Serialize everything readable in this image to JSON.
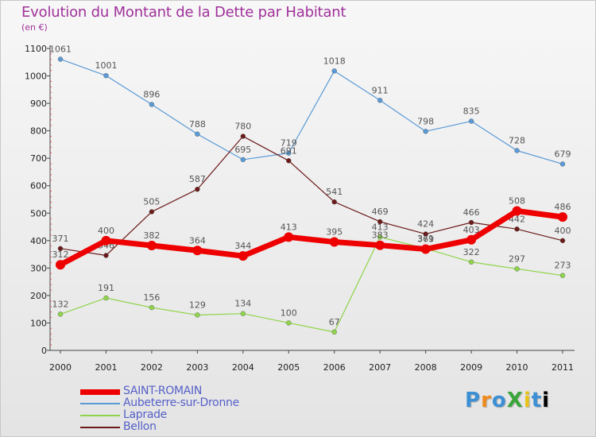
{
  "title": "Evolution du Montant de la Dette par Habitant",
  "subtitle": "(en €)",
  "brand": "ProXiti",
  "chart_data": {
    "type": "line",
    "x": [
      "2000",
      "2001",
      "2002",
      "2003",
      "2004",
      "2005",
      "2006",
      "2007",
      "2008",
      "2009",
      "2010",
      "2011"
    ],
    "yticks": [
      0,
      100,
      200,
      300,
      400,
      500,
      600,
      700,
      800,
      900,
      1000,
      1100
    ],
    "ylim": [
      0,
      1100
    ],
    "grid": false,
    "series": [
      {
        "name": "Aubeterre-sur-Dronne",
        "color": "#5a9ad6",
        "values": [
          1061,
          1001,
          896,
          788,
          695,
          719,
          1018,
          911,
          798,
          835,
          728,
          679
        ]
      },
      {
        "name": "Laprade",
        "color": "#8fd44a",
        "values": [
          132,
          191,
          156,
          129,
          134,
          100,
          67,
          413,
          371,
          322,
          297,
          273
        ]
      },
      {
        "name": "Bellon",
        "color": "#6b1a1a",
        "values": [
          371,
          346,
          505,
          587,
          780,
          691,
          541,
          469,
          424,
          466,
          442,
          400
        ]
      },
      {
        "name": "SAINT-ROMAIN",
        "color": "#ee0000",
        "values": [
          312,
          400,
          382,
          364,
          344,
          413,
          395,
          383,
          369,
          403,
          508,
          486
        ]
      }
    ],
    "legend": [
      {
        "name": "SAINT-ROMAIN",
        "color": "#ee0000",
        "thick": true
      },
      {
        "name": "Aubeterre-sur-Dronne",
        "color": "#5a9ad6",
        "thick": false
      },
      {
        "name": "Laprade",
        "color": "#8fd44a",
        "thick": false
      },
      {
        "name": "Bellon",
        "color": "#6b1a1a",
        "thick": false
      }
    ],
    "legend_position": "bottom-left"
  }
}
